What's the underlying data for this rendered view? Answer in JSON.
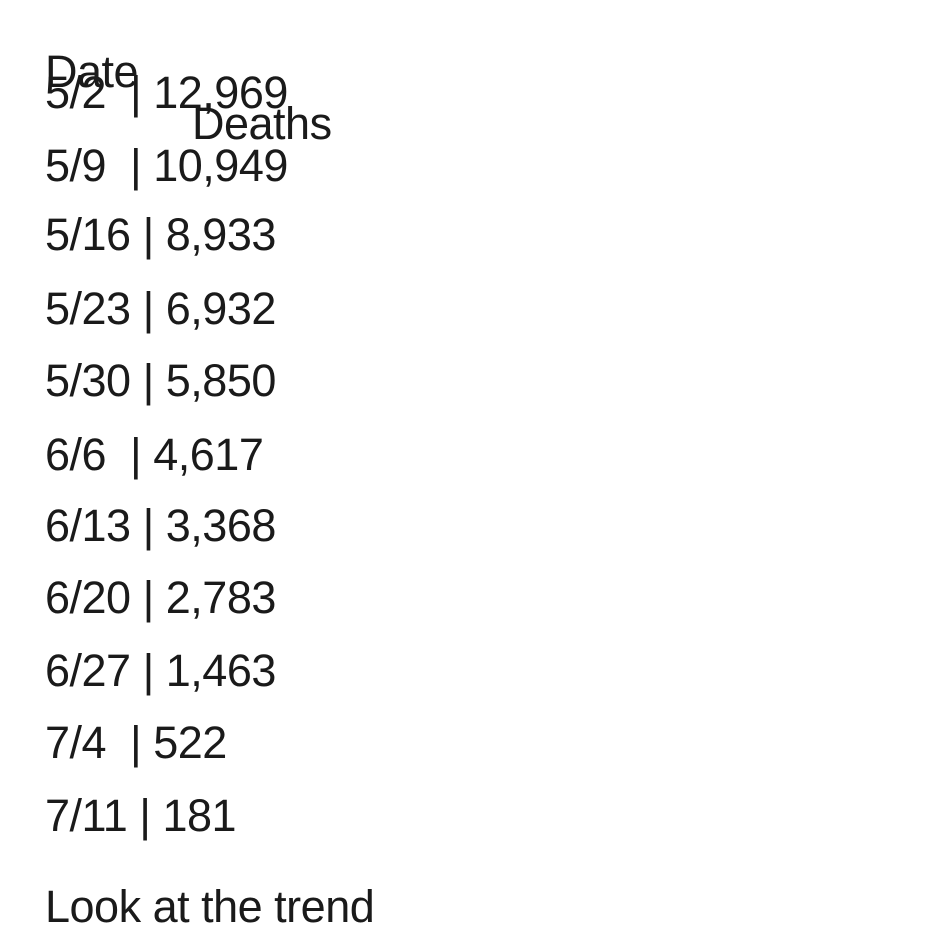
{
  "header": {
    "date_label": "Date",
    "deaths_label": "Deaths"
  },
  "rows": [
    {
      "text": "5/2  | 12,969"
    },
    {
      "text": "5/9  | 10,949"
    },
    {
      "text": "5/16 | 8,933"
    },
    {
      "text": "5/23 | 6,932"
    },
    {
      "text": "5/30 | 5,850"
    },
    {
      "text": "6/6  | 4,617"
    },
    {
      "text": "6/13 | 3,368"
    },
    {
      "text": "6/20 | 2,783"
    },
    {
      "text": "6/27 | 1,463"
    },
    {
      "text": "7/4  | 522"
    },
    {
      "text": "7/11 | 181"
    }
  ],
  "footer": {
    "text": "Look at the trend"
  }
}
